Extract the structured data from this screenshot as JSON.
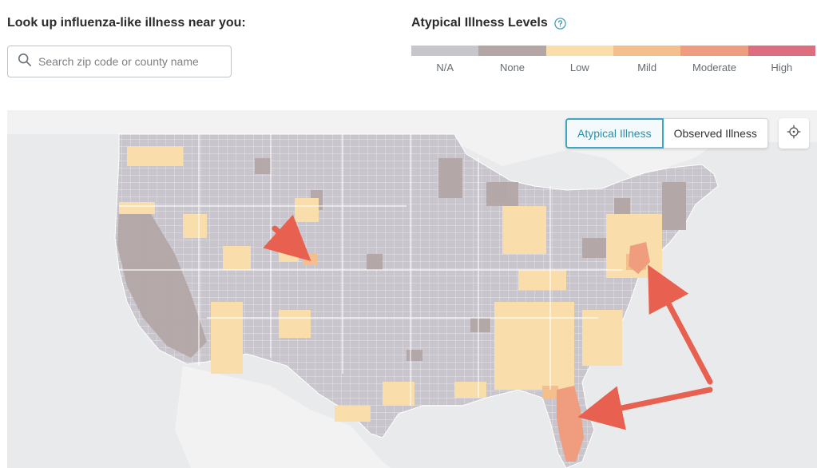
{
  "lookup": {
    "title": "Look up influenza-like illness near you:",
    "search_placeholder": "Search zip code or county name",
    "search_value": ""
  },
  "legend": {
    "title": "Atypical Illness Levels",
    "levels": [
      {
        "label": "N/A",
        "color": "#c8c5cc"
      },
      {
        "label": "None",
        "color": "#b3a6a6"
      },
      {
        "label": "Low",
        "color": "#f9deac"
      },
      {
        "label": "Mild",
        "color": "#f4bf8c"
      },
      {
        "label": "Moderate",
        "color": "#ef9c7f"
      },
      {
        "label": "High",
        "color": "#dc6e7f"
      }
    ]
  },
  "map": {
    "toggles": [
      {
        "label": "Atypical Illness",
        "active": true
      },
      {
        "label": "Observed Illness",
        "active": false
      }
    ],
    "locate_icon": "crosshair-icon",
    "annotation_color": "#e8604f",
    "highlighted_regions": [
      "Colorado",
      "New Jersey / New York",
      "Florida"
    ]
  }
}
